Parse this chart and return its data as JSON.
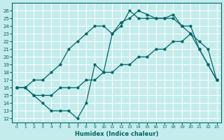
{
  "xlabel": "Humidex (Indice chaleur)",
  "bg_color": "#c5ecec",
  "grid_color": "#ffffff",
  "line_color": "#006666",
  "xlim": [
    -0.5,
    23.5
  ],
  "ylim": [
    11.5,
    27
  ],
  "xticks": [
    0,
    1,
    2,
    3,
    4,
    5,
    6,
    7,
    8,
    9,
    10,
    11,
    12,
    13,
    14,
    15,
    16,
    17,
    18,
    19,
    20,
    21,
    22,
    23
  ],
  "yticks": [
    12,
    13,
    14,
    15,
    16,
    17,
    18,
    19,
    20,
    21,
    22,
    23,
    24,
    25,
    26
  ],
  "line1_x": [
    0,
    1,
    2,
    3,
    4,
    5,
    6,
    7,
    8,
    9,
    10,
    11,
    12,
    13,
    14,
    15,
    16,
    17,
    18,
    19,
    20,
    21,
    22,
    23
  ],
  "line1_y": [
    16,
    16,
    17,
    17,
    18,
    19,
    21,
    22,
    23,
    24,
    24,
    23,
    24.5,
    25,
    26,
    25.5,
    25,
    25,
    25.5,
    24,
    24,
    21,
    19,
    17
  ],
  "line2_x": [
    0,
    1,
    2,
    3,
    4,
    5,
    6,
    7,
    8,
    9,
    10,
    11,
    12,
    13,
    14,
    15,
    16,
    17,
    18,
    19,
    20,
    21,
    22,
    23
  ],
  "line2_y": [
    16,
    16,
    15,
    15,
    15,
    16,
    16,
    16,
    17,
    17,
    18,
    18,
    19,
    19,
    20,
    20,
    21,
    21,
    22,
    22,
    23,
    22,
    21,
    17
  ],
  "line3_x": [
    0,
    1,
    2,
    3,
    4,
    5,
    6,
    7,
    8,
    9,
    10,
    11,
    12,
    13,
    14,
    15,
    16,
    17,
    18,
    19,
    20,
    21,
    22,
    23
  ],
  "line3_y": [
    16,
    16,
    15,
    14,
    13,
    13,
    13,
    12,
    14,
    19,
    18,
    23,
    24,
    26,
    25,
    25,
    25,
    25,
    25,
    24,
    23,
    21,
    19,
    17
  ]
}
